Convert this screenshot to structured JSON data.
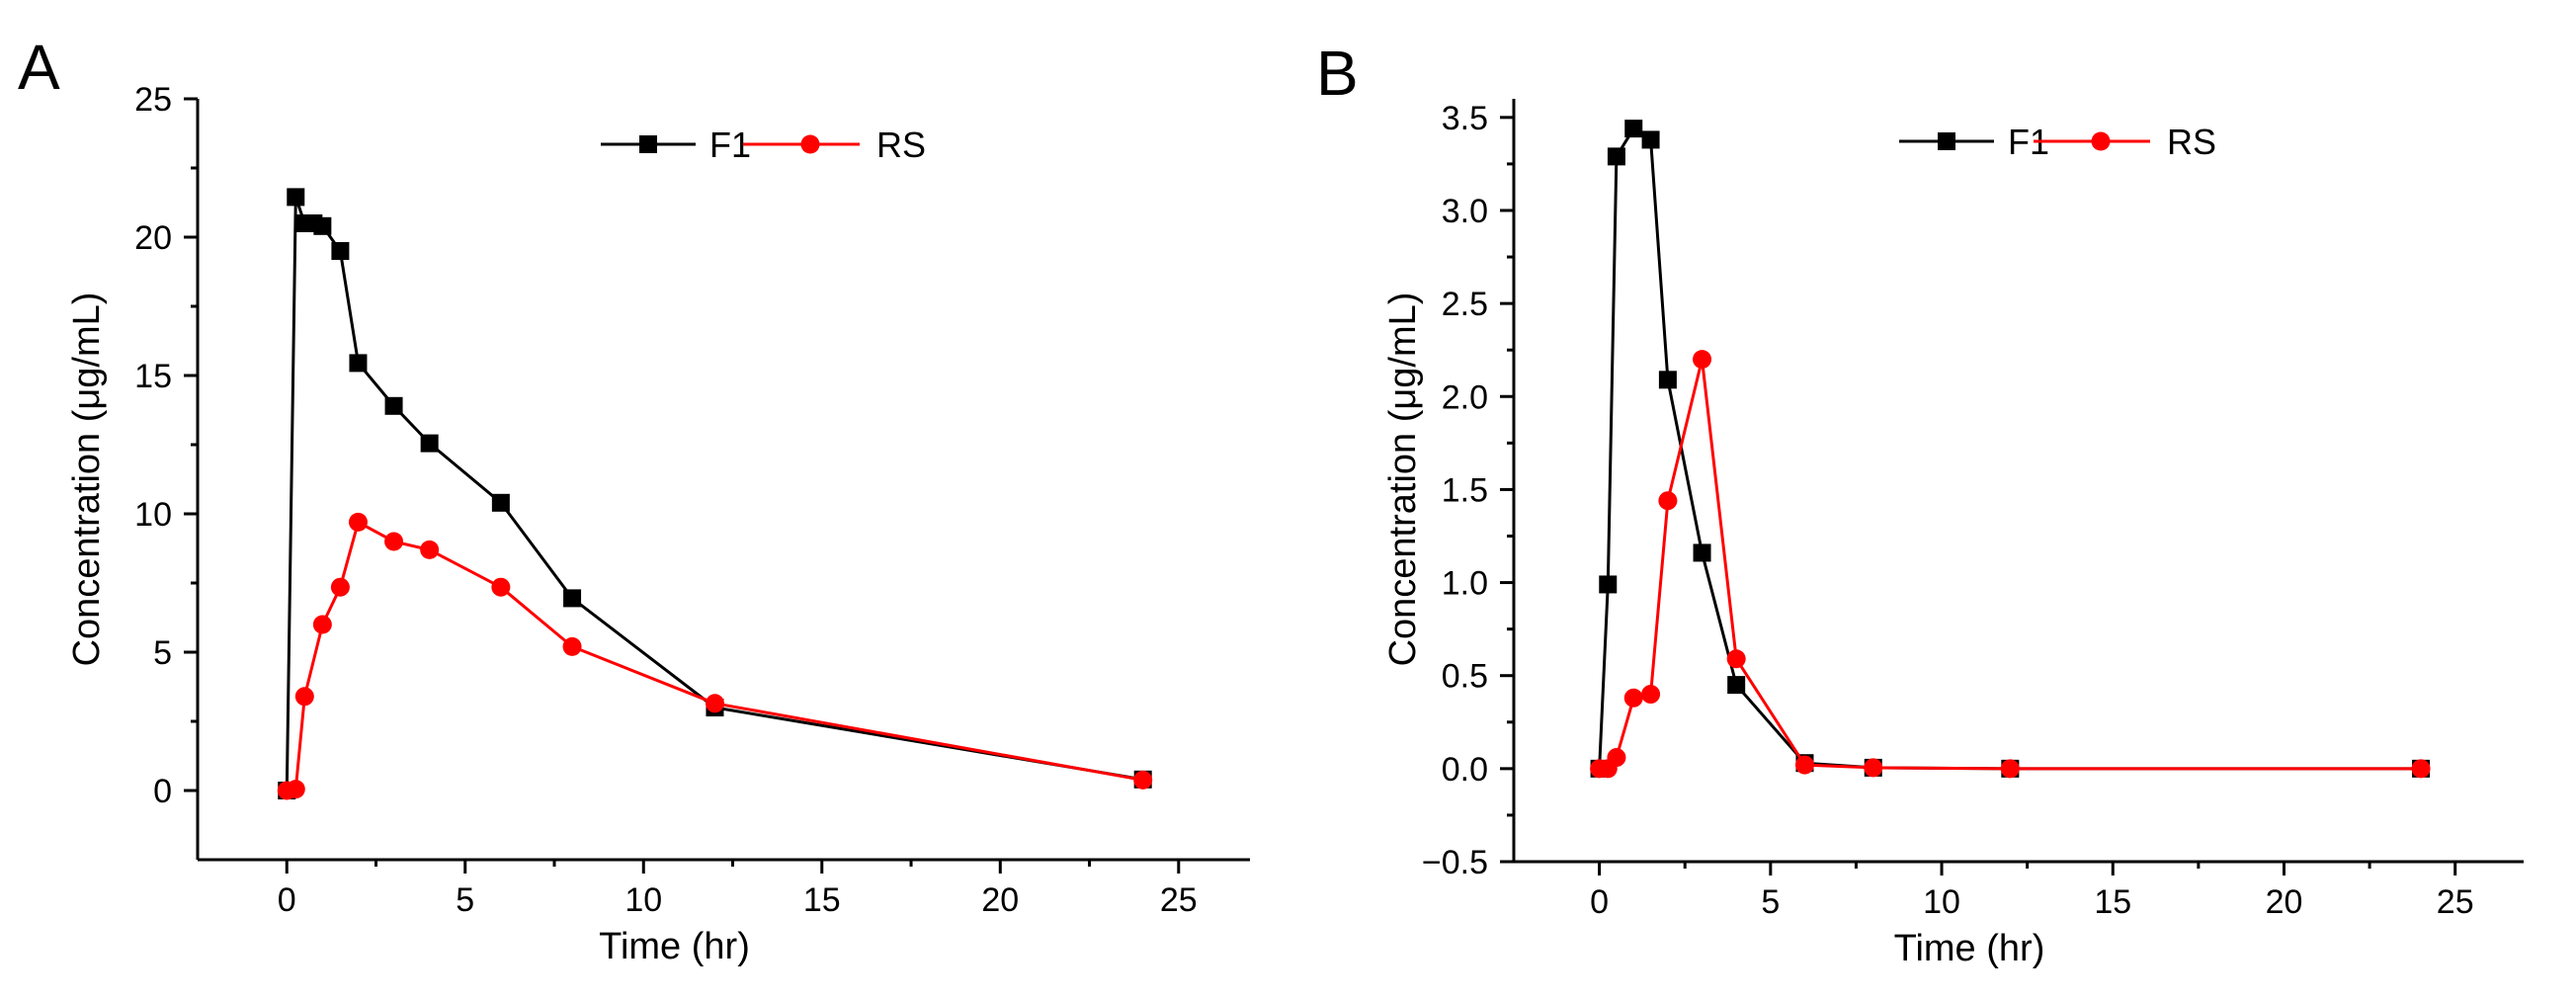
{
  "chart_data": [
    {
      "panel_label": "A",
      "type": "line",
      "title": "",
      "xlabel": "Time (hr)",
      "ylabel": "Concentration (μg/mL)",
      "xlim": [
        -2.5,
        27
      ],
      "ylim": [
        -2.5,
        25
      ],
      "xticks": [
        0,
        5,
        10,
        15,
        20,
        25
      ],
      "yticks": [
        0,
        5,
        10,
        15,
        20,
        25
      ],
      "xtick_labels": [
        "0",
        "5",
        "10",
        "15",
        "20",
        "25"
      ],
      "ytick_labels": [
        "0",
        "5",
        "10",
        "15",
        "20",
        "25"
      ],
      "grid": false,
      "legend_position": "top",
      "series": [
        {
          "name": "F1",
          "color": "#000000",
          "marker": "square",
          "x": [
            0,
            0.25,
            0.5,
            0.75,
            1,
            1.5,
            2,
            3,
            4,
            6,
            8,
            12,
            24
          ],
          "y": [
            0,
            21.45,
            20.5,
            20.5,
            20.4,
            19.5,
            15.45,
            13.9,
            12.55,
            10.4,
            6.95,
            3.0,
            0.4
          ]
        },
        {
          "name": "RS",
          "color": "#ff0000",
          "marker": "circle",
          "x": [
            0,
            0.25,
            0.5,
            1,
            1.5,
            2,
            3,
            4,
            6,
            8,
            12,
            24
          ],
          "y": [
            0,
            0.05,
            3.4,
            6.0,
            7.35,
            9.7,
            9.0,
            8.7,
            7.35,
            5.2,
            3.15,
            0.38
          ]
        }
      ]
    },
    {
      "panel_label": "B",
      "type": "line",
      "title": "",
      "xlabel": "Time (hr)",
      "ylabel": "Concentration (μg/mL)",
      "xlim": [
        -2.5,
        27
      ],
      "ylim": [
        -0.5,
        3.6
      ],
      "xticks": [
        0,
        5,
        10,
        15,
        20,
        25
      ],
      "yticks": [
        -0.5,
        0,
        0.5,
        1,
        1.5,
        2,
        2.5,
        3,
        3.5
      ],
      "xtick_labels": [
        "0",
        "5",
        "10",
        "15",
        "20",
        "25"
      ],
      "ytick_labels": [
        "−0.5",
        "0.0",
        "0.5",
        "1.0",
        "1.5",
        "2.0",
        "2.5",
        "3.0",
        "3.5"
      ],
      "grid": false,
      "legend_position": "top",
      "series": [
        {
          "name": "F1",
          "color": "#000000",
          "marker": "square",
          "x": [
            0,
            0.25,
            0.5,
            1,
            1.5,
            2,
            3,
            4,
            6,
            8,
            12,
            24
          ],
          "y": [
            0,
            0.99,
            3.29,
            3.44,
            3.38,
            2.09,
            1.16,
            0.45,
            0.03,
            0.005,
            0,
            0
          ]
        },
        {
          "name": "RS",
          "color": "#ff0000",
          "marker": "circle",
          "x": [
            0,
            0.25,
            0.5,
            1,
            1.5,
            2,
            3,
            4,
            6,
            8,
            12,
            24
          ],
          "y": [
            0,
            0,
            0.06,
            0.38,
            0.4,
            1.44,
            2.2,
            0.59,
            0.02,
            0.005,
            0,
            0
          ]
        }
      ]
    }
  ]
}
